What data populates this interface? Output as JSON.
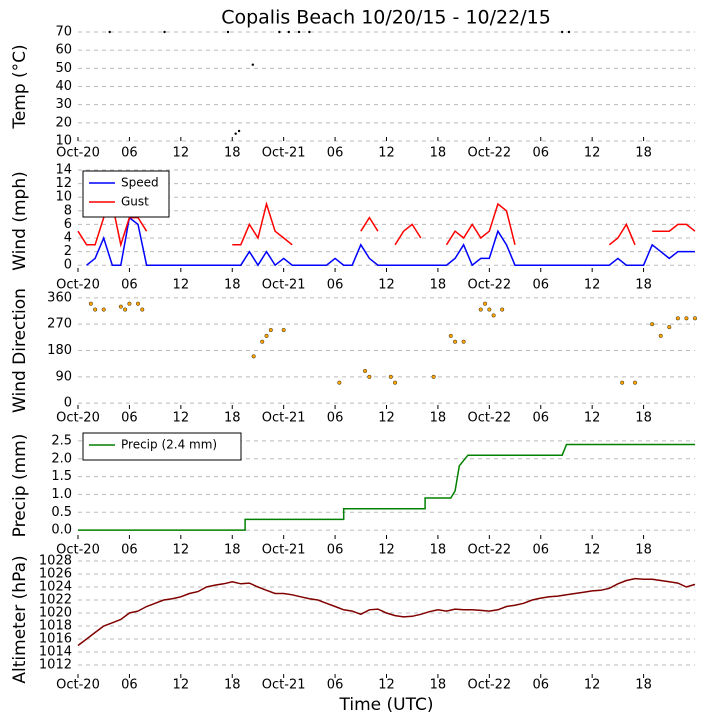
{
  "chart_data": [
    {
      "type": "scatter",
      "title": "Copalis Beach 10/20/15 - 10/22/15",
      "y_label": "Temp (°C)",
      "color": "#000000",
      "x": [
        3.7,
        10.1,
        17.5,
        18.4,
        18.8,
        20.4,
        23.5,
        24.6,
        25.8,
        27,
        56.5,
        57.3
      ],
      "values": [
        70,
        70,
        70,
        14,
        15.5,
        52,
        70,
        70,
        70,
        70,
        70,
        70
      ],
      "xlim": [
        0,
        72
      ],
      "xticks": [
        {
          "value": 0,
          "label": "Oct-20"
        },
        {
          "value": 6,
          "label": "06"
        },
        12,
        18,
        {
          "value": 24,
          "label": "Oct-21"
        },
        {
          "value": 30,
          "label": "06"
        },
        {
          "value": 36,
          "label": "12"
        },
        {
          "value": 42,
          "label": "18"
        },
        {
          "value": 48,
          "label": "Oct-22"
        },
        {
          "value": 54,
          "label": "06"
        },
        {
          "value": 60,
          "label": "12"
        },
        {
          "value": 66,
          "label": "18"
        }
      ],
      "ylim": [
        10,
        70
      ],
      "yticks": [
        10,
        20,
        30,
        40,
        50,
        60,
        70
      ],
      "grid": true
    },
    {
      "type": "line",
      "y_label": "Wind (mph)",
      "legend": "upper left",
      "x": [
        0,
        1,
        2,
        3,
        4,
        5,
        6,
        7,
        8,
        9,
        10,
        11,
        12,
        13,
        14,
        15,
        16,
        17,
        18,
        19,
        20,
        21,
        22,
        23,
        24,
        25,
        26,
        27,
        28,
        29,
        30,
        31,
        32,
        33,
        34,
        35,
        36,
        37,
        38,
        39,
        40,
        41,
        42,
        43,
        44,
        45,
        46,
        47,
        48,
        49,
        50,
        51,
        52,
        53,
        54,
        55,
        56,
        57,
        58,
        59,
        60,
        61,
        62,
        63,
        64,
        65,
        66,
        67,
        68,
        69,
        70,
        71,
        72
      ],
      "series": [
        {
          "name": "Speed",
          "color": "#0000ff",
          "values": [
            null,
            0,
            1,
            4,
            0,
            0,
            7,
            6,
            0,
            0,
            0,
            0,
            0,
            0,
            0,
            0,
            0,
            0,
            0,
            0,
            2,
            0,
            2,
            0,
            1,
            0,
            0,
            0,
            0,
            0,
            1,
            0,
            0,
            3,
            1,
            0,
            0,
            0,
            0,
            0,
            0,
            0,
            0,
            0,
            1,
            3,
            0,
            1,
            1,
            5,
            3,
            0,
            0,
            0,
            0,
            0,
            0,
            0,
            0,
            0,
            0,
            0,
            0,
            1,
            0,
            0,
            0,
            3,
            2,
            1,
            2,
            2,
            2
          ]
        },
        {
          "name": "Gust",
          "color": "#ff0000",
          "values": [
            5,
            3,
            3,
            7,
            9,
            3,
            7,
            7,
            5,
            null,
            null,
            null,
            null,
            null,
            null,
            null,
            null,
            null,
            3,
            3,
            6,
            4,
            9,
            5,
            4,
            3,
            null,
            null,
            null,
            null,
            5,
            null,
            null,
            5,
            7,
            5,
            null,
            3,
            5,
            6,
            4,
            null,
            null,
            3,
            5,
            4,
            6,
            4,
            5,
            9,
            8,
            3,
            null,
            null,
            null,
            null,
            null,
            null,
            null,
            null,
            null,
            null,
            3,
            4,
            6,
            3,
            null,
            5,
            5,
            5,
            6,
            6,
            5
          ]
        }
      ],
      "xlim": [
        0,
        72
      ],
      "xticks": [
        {
          "value": 0,
          "label": "Oct-20"
        },
        {
          "value": 6,
          "label": "06"
        },
        12,
        18,
        {
          "value": 24,
          "label": "Oct-21"
        },
        {
          "value": 30,
          "label": "06"
        },
        {
          "value": 36,
          "label": "12"
        },
        {
          "value": 42,
          "label": "18"
        },
        {
          "value": 48,
          "label": "Oct-22"
        },
        {
          "value": 54,
          "label": "06"
        },
        {
          "value": 60,
          "label": "12"
        },
        {
          "value": 66,
          "label": "18"
        }
      ],
      "ylim": [
        -1,
        14
      ],
      "yticks": [
        0,
        2,
        4,
        6,
        8,
        10,
        12,
        14
      ],
      "grid": true
    },
    {
      "type": "scatter",
      "y_label": "Wind Direction",
      "color": "#ffa500",
      "x": [
        1.5,
        2,
        3,
        5,
        5.5,
        6,
        7,
        7.5,
        20.5,
        21.5,
        22,
        22.5,
        24,
        30.5,
        33.5,
        34,
        36.5,
        37,
        41.5,
        43.5,
        44,
        45,
        47,
        47.5,
        48,
        48.5,
        49.5,
        63.5,
        65,
        67,
        68,
        69,
        70,
        71,
        72
      ],
      "values": [
        340,
        320,
        320,
        330,
        320,
        340,
        340,
        320,
        160,
        210,
        230,
        250,
        250,
        70,
        110,
        90,
        90,
        70,
        90,
        230,
        210,
        210,
        320,
        340,
        320,
        300,
        320,
        70,
        70,
        270,
        230,
        260,
        290,
        290,
        290
      ],
      "xlim": [
        0,
        72
      ],
      "xticks": [
        {
          "value": 0,
          "label": "Oct-20"
        },
        {
          "value": 6,
          "label": "06"
        },
        12,
        18,
        {
          "value": 24,
          "label": "Oct-21"
        },
        {
          "value": 30,
          "label": "06"
        },
        {
          "value": 36,
          "label": "12"
        },
        {
          "value": 42,
          "label": "18"
        },
        {
          "value": 48,
          "label": "Oct-22"
        },
        {
          "value": 54,
          "label": "06"
        },
        {
          "value": 60,
          "label": "12"
        },
        {
          "value": 66,
          "label": "18"
        }
      ],
      "ylim": [
        -20,
        380
      ],
      "yticks": [
        0,
        90,
        180,
        270,
        360
      ],
      "grid": true
    },
    {
      "type": "line",
      "y_label": "Precip (mm)",
      "legend": "upper left",
      "x": [
        0,
        19.5,
        19.5,
        31,
        31,
        40.5,
        40.5,
        43.5,
        44,
        44.5,
        45.5,
        56.5,
        57,
        72
      ],
      "series": [
        {
          "name": "Precip (2.4 mm)",
          "color": "#008000",
          "values": [
            0,
            0,
            0.3,
            0.3,
            0.6,
            0.6,
            0.9,
            0.9,
            1.1,
            1.8,
            2.1,
            2.1,
            2.4,
            2.4
          ]
        }
      ],
      "xlim": [
        0,
        72
      ],
      "xticks": [
        {
          "value": 0,
          "label": "Oct-20"
        },
        {
          "value": 6,
          "label": "06"
        },
        12,
        18,
        {
          "value": 24,
          "label": "Oct-21"
        },
        {
          "value": 30,
          "label": "06"
        },
        {
          "value": 36,
          "label": "12"
        },
        {
          "value": 42,
          "label": "18"
        },
        {
          "value": 48,
          "label": "Oct-22"
        },
        {
          "value": 54,
          "label": "06"
        },
        {
          "value": 60,
          "label": "12"
        },
        {
          "value": 66,
          "label": "18"
        }
      ],
      "ylim": [
        -0.25,
        2.75
      ],
      "yticks": [
        {
          "value": 0,
          "label": "0.0"
        },
        0.5,
        {
          "value": 1,
          "label": "1.0"
        },
        1.5,
        {
          "value": 2,
          "label": "2.0"
        },
        2.5
      ],
      "grid": true
    },
    {
      "type": "line",
      "y_label": "Altimeter (hPa)",
      "x_label": "Time (UTC)",
      "x": [
        0,
        1,
        2,
        3,
        4,
        5,
        6,
        7,
        8,
        9,
        10,
        11,
        12,
        13,
        14,
        15,
        16,
        17,
        18,
        19,
        20,
        21,
        22,
        23,
        24,
        25,
        26,
        27,
        28,
        29,
        30,
        31,
        32,
        33,
        34,
        35,
        36,
        37,
        38,
        39,
        40,
        41,
        42,
        43,
        44,
        45,
        46,
        47,
        48,
        49,
        50,
        51,
        52,
        53,
        54,
        55,
        56,
        57,
        58,
        59,
        60,
        61,
        62,
        63,
        64,
        65,
        66,
        67,
        68,
        69,
        70,
        71,
        72
      ],
      "series": [
        {
          "color": "#800000",
          "values": [
            1015,
            1016,
            1017,
            1018,
            1018.5,
            1019,
            1020,
            1020.3,
            1021,
            1021.5,
            1022,
            1022.2,
            1022.5,
            1023,
            1023.3,
            1024,
            1024.3,
            1024.5,
            1024.8,
            1024.5,
            1024.6,
            1024,
            1023.5,
            1023,
            1023,
            1022.8,
            1022.5,
            1022.2,
            1022,
            1021.5,
            1021,
            1020.5,
            1020.3,
            1019.8,
            1020.5,
            1020.6,
            1020,
            1019.6,
            1019.4,
            1019.5,
            1019.8,
            1020.2,
            1020.5,
            1020.3,
            1020.6,
            1020.5,
            1020.5,
            1020.4,
            1020.3,
            1020.5,
            1021,
            1021.2,
            1021.5,
            1022,
            1022.3,
            1022.5,
            1022.6,
            1022.8,
            1023,
            1023.2,
            1023.4,
            1023.5,
            1023.8,
            1024.5,
            1025,
            1025.3,
            1025.2,
            1025.2,
            1025,
            1024.8,
            1024.6,
            1024,
            1024.4
          ]
        }
      ],
      "xlim": [
        0,
        72
      ],
      "xticks": [
        {
          "value": 0,
          "label": "Oct-20"
        },
        {
          "value": 6,
          "label": "06"
        },
        12,
        18,
        {
          "value": 24,
          "label": "Oct-21"
        },
        {
          "value": 30,
          "label": "06"
        },
        {
          "value": 36,
          "label": "12"
        },
        {
          "value": 42,
          "label": "18"
        },
        {
          "value": 48,
          "label": "Oct-22"
        },
        {
          "value": 54,
          "label": "06"
        },
        {
          "value": 60,
          "label": "12"
        },
        {
          "value": 66,
          "label": "18"
        }
      ],
      "ylim": [
        1010,
        1028
      ],
      "yticks": [
        1012,
        1014,
        1016,
        1018,
        1020,
        1022,
        1024,
        1026,
        1028
      ],
      "grid": true
    }
  ]
}
